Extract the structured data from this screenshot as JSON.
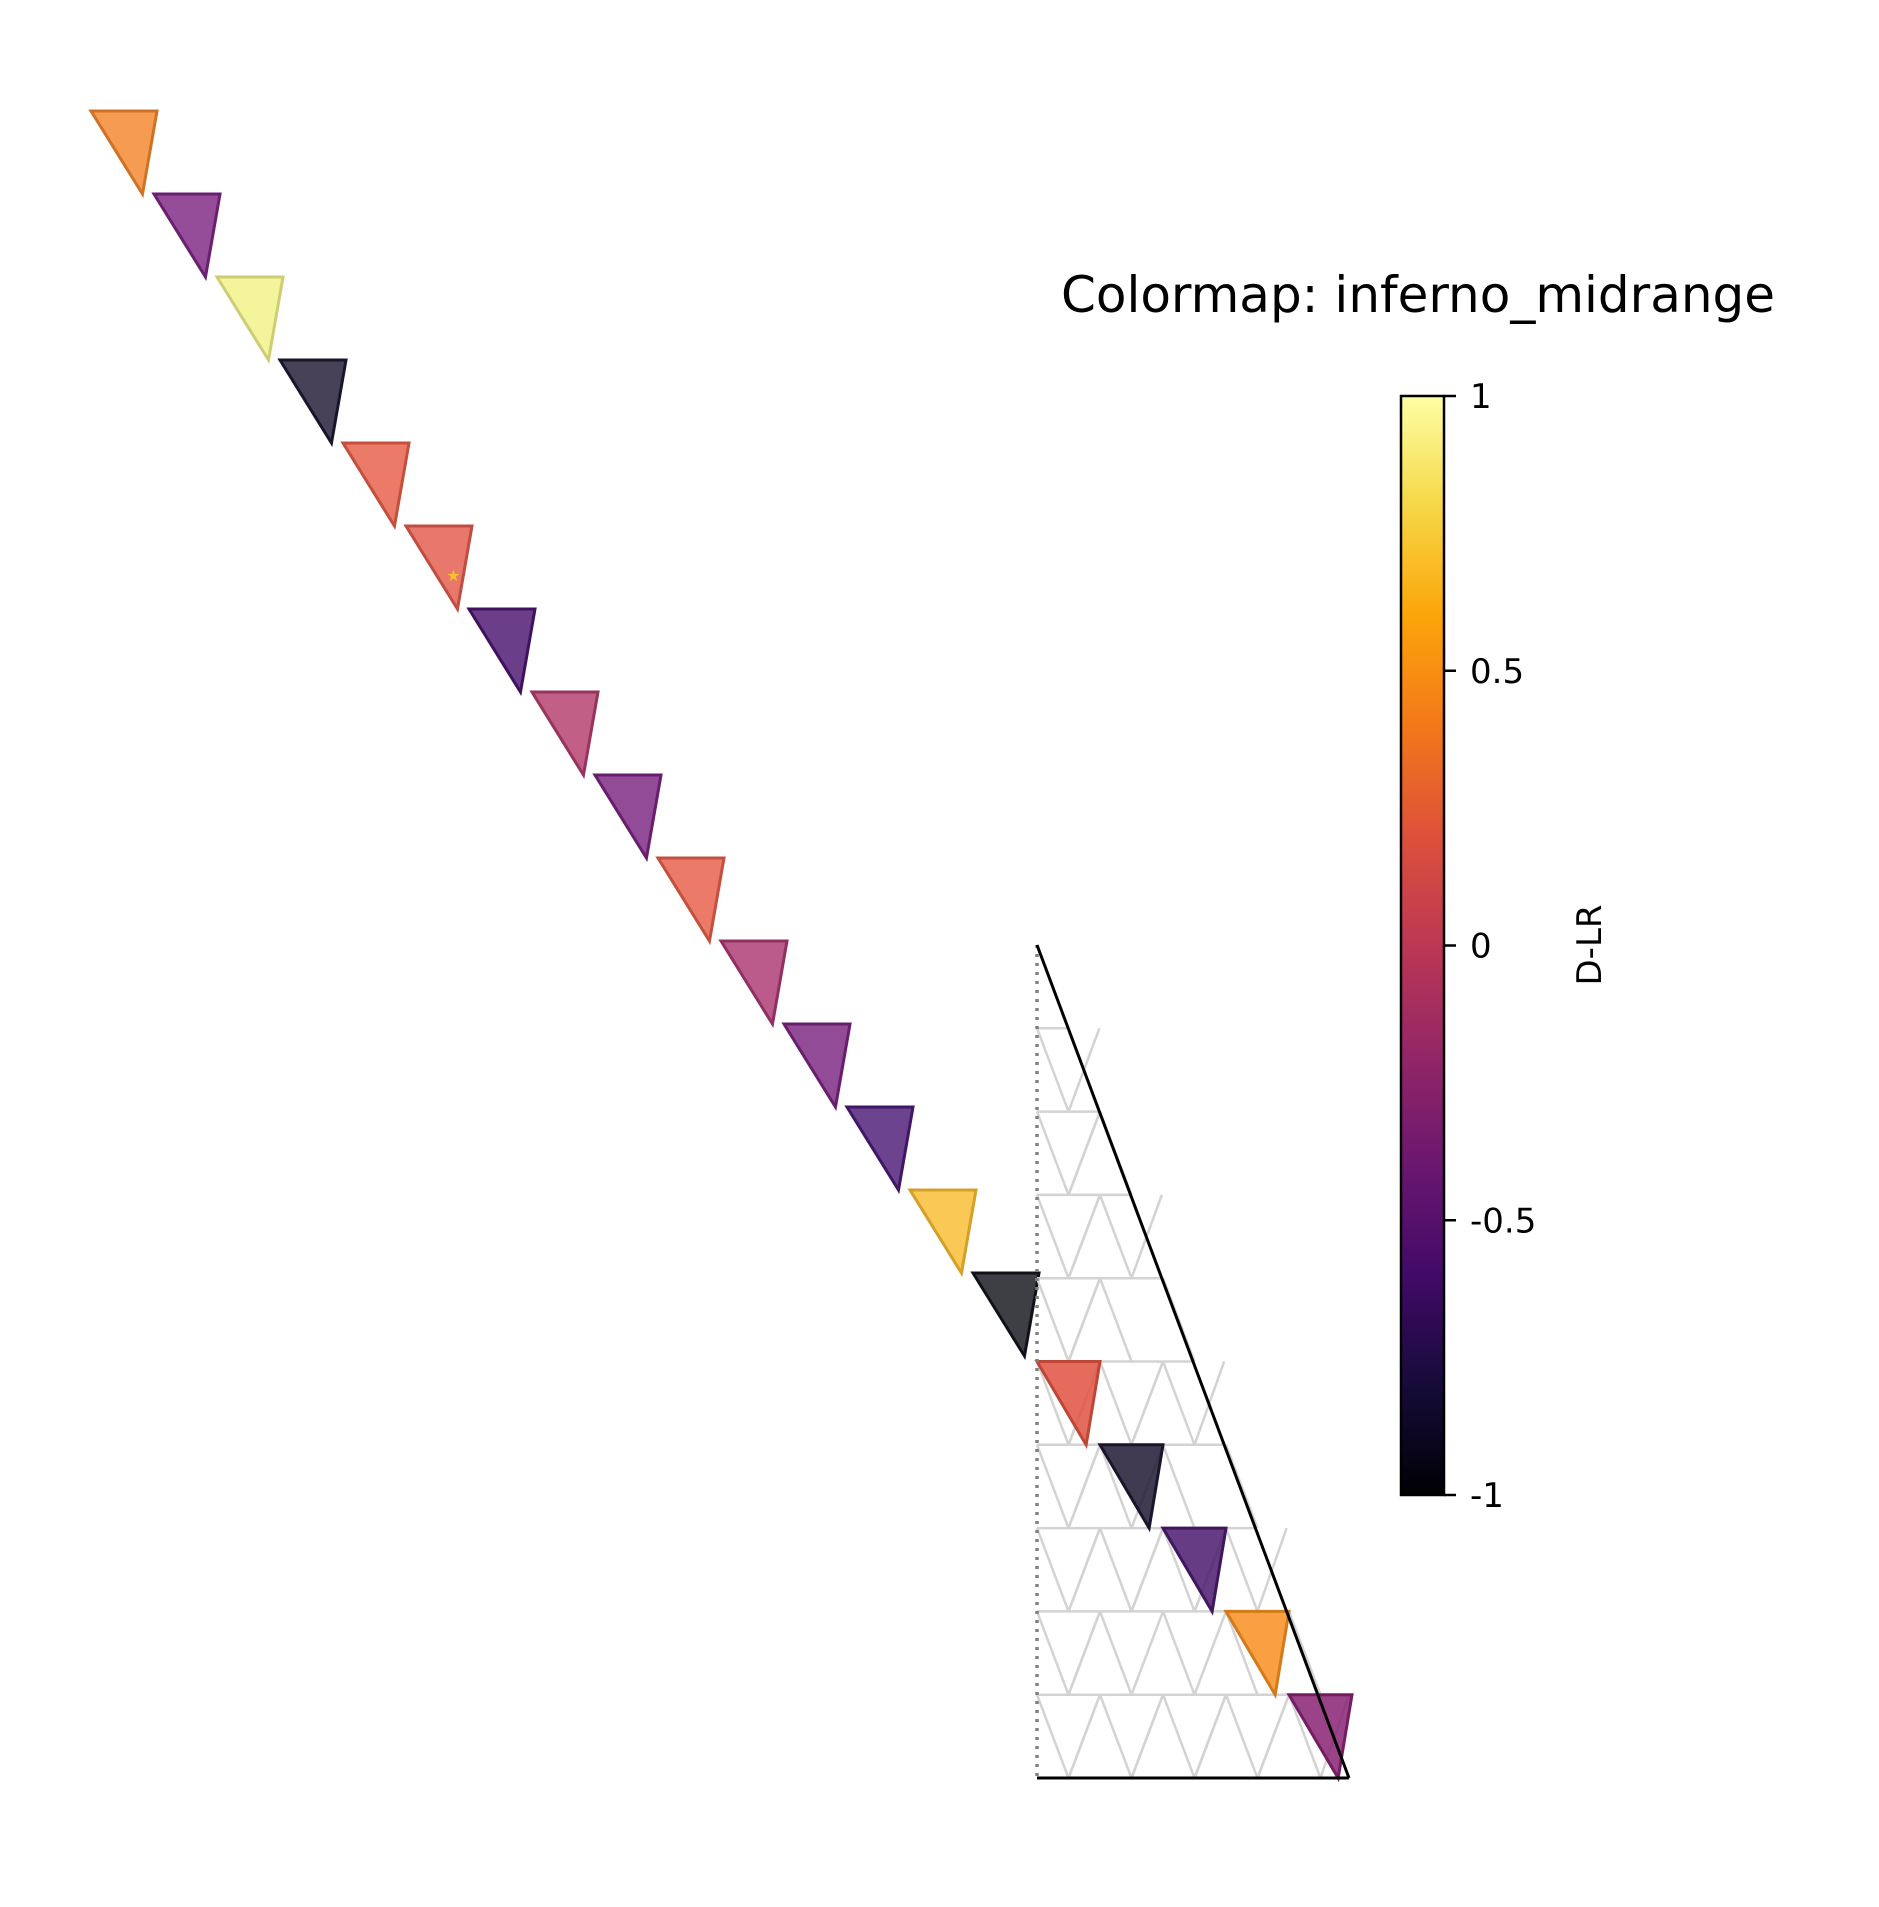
{
  "chart_data": {
    "type": "heatmap",
    "title": "Colormap: inferno_midrange",
    "colormap": "inferno",
    "colorbar": {
      "label": "D-LR",
      "vmin": -1,
      "vmax": 1,
      "ticks": [
        {
          "value": 1,
          "label": "1"
        },
        {
          "value": 0.5,
          "label": "0.5"
        },
        {
          "value": 0,
          "label": "0"
        },
        {
          "value": -0.5,
          "label": "-0.5"
        },
        {
          "value": -1,
          "label": "-1"
        }
      ]
    },
    "diagonal_cells": [
      {
        "index": 0,
        "value": 0.45,
        "color": "#f4862c"
      },
      {
        "index": 1,
        "value": -0.4,
        "color": "#7e2482"
      },
      {
        "index": 2,
        "value": 1.0,
        "color": "#f1f288"
      },
      {
        "index": 3,
        "value": -0.9,
        "color": "#1e1933"
      },
      {
        "index": 4,
        "value": 0.25,
        "color": "#e65d48"
      },
      {
        "index": 5,
        "value": 0.22,
        "color": "#e3594c",
        "marker": "star"
      },
      {
        "index": 6,
        "value": -0.55,
        "color": "#4b1470"
      },
      {
        "index": 7,
        "value": -0.05,
        "color": "#b33c6b"
      },
      {
        "index": 8,
        "value": -0.4,
        "color": "#7a2380"
      },
      {
        "index": 9,
        "value": 0.25,
        "color": "#e65d48"
      },
      {
        "index": 10,
        "value": -0.08,
        "color": "#ab3772"
      },
      {
        "index": 11,
        "value": -0.4,
        "color": "#7a2380"
      },
      {
        "index": 12,
        "value": -0.55,
        "color": "#4c1a76"
      },
      {
        "index": 13,
        "value": 0.8,
        "color": "#f9bc2e"
      },
      {
        "index": 14,
        "value": -0.95,
        "color": "#14141c"
      }
    ],
    "triangle_grid": {
      "rows": 10,
      "filled_cells": [
        {
          "row": 5,
          "col": 0,
          "value": 0.2,
          "color": "#e0523f"
        },
        {
          "row": 6,
          "col": 1,
          "value": -0.9,
          "color": "#1e1933"
        },
        {
          "row": 7,
          "col": 2,
          "value": -0.55,
          "color": "#4b1b6e"
        },
        {
          "row": 8,
          "col": 3,
          "value": 0.6,
          "color": "#f89121"
        },
        {
          "row": 9,
          "col": 4,
          "value": -0.2,
          "color": "#8a2273"
        }
      ]
    }
  }
}
